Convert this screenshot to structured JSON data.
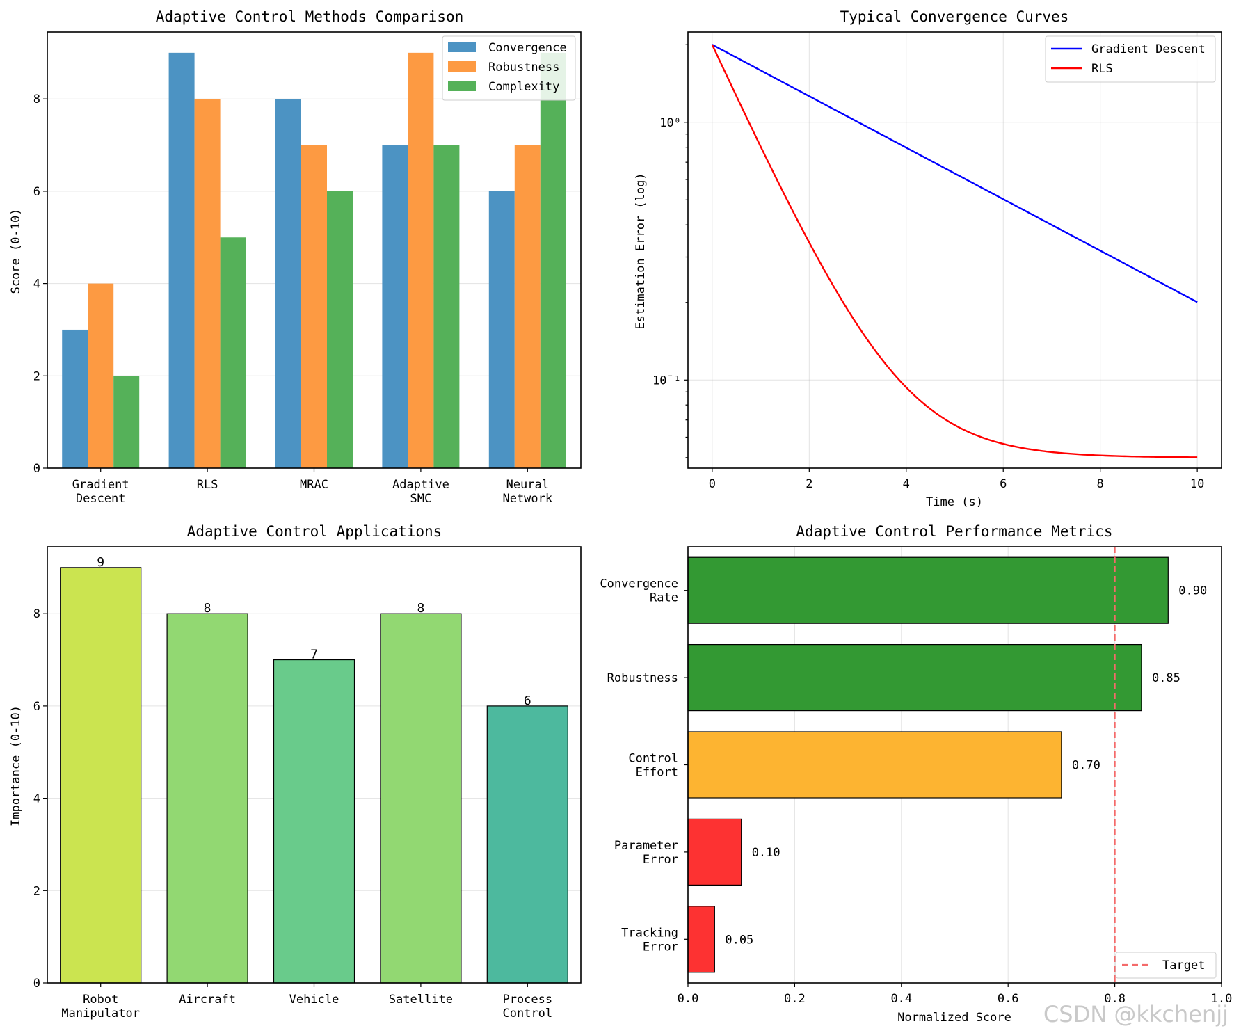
{
  "chart_data": [
    {
      "type": "bar",
      "title": "Adaptive Control Methods Comparison",
      "xlabel": "",
      "ylabel": "Score (0-10)",
      "ylim": [
        0,
        9.45
      ],
      "yticks": [
        0,
        2,
        4,
        6,
        8
      ],
      "categories": [
        "Gradient\nDescent",
        "RLS",
        "MRAC",
        "Adaptive\nSMC",
        "Neural\nNetwork"
      ],
      "series": [
        {
          "name": "Convergence",
          "color": "#4c93c3",
          "values": [
            3,
            9,
            8,
            7,
            6
          ]
        },
        {
          "name": "Robustness",
          "color": "#fd9a42",
          "values": [
            4,
            8,
            7,
            9,
            7
          ]
        },
        {
          "name": "Complexity",
          "color": "#55b159",
          "values": [
            2,
            5,
            6,
            7,
            9
          ]
        }
      ],
      "legend": "top-right",
      "grid": true
    },
    {
      "type": "line",
      "title": "Typical Convergence Curves",
      "xlabel": "Time (s)",
      "ylabel": "Estimation Error (log)",
      "yscale": "log",
      "xlim": [
        -0.5,
        10.5
      ],
      "ylim": [
        0.0455,
        2.24
      ],
      "xticks": [
        0,
        2,
        4,
        6,
        8,
        10
      ],
      "ytick_labels": [
        {
          "value": 1,
          "label": "10⁰"
        },
        {
          "value": 0.1,
          "label": "10¯¹"
        }
      ],
      "series": [
        {
          "name": "Gradient Descent",
          "color": "#0000ff",
          "formula": "2*exp(-0.23*t)",
          "x_range": [
            0,
            10
          ]
        },
        {
          "name": "RLS",
          "color": "#ff0000",
          "formula": "0.05+1.95*exp(-0.95*t)",
          "x_range": [
            0,
            10
          ]
        }
      ],
      "legend": "top-right",
      "grid": true
    },
    {
      "type": "bar",
      "title": "Adaptive Control Applications",
      "xlabel": "",
      "ylabel": "Importance (0-10)",
      "ylim": [
        0,
        9.45
      ],
      "yticks": [
        0,
        2,
        4,
        6,
        8
      ],
      "categories": [
        "Robot\nManipulator",
        "Aircraft",
        "Vehicle",
        "Satellite",
        "Process\nControl"
      ],
      "values": [
        9,
        8,
        7,
        8,
        6
      ],
      "data_labels": [
        "9",
        "8",
        "7",
        "8",
        "6"
      ],
      "colors": [
        "#cbe450",
        "#92d872",
        "#69cb8b",
        "#92d872",
        "#4db99e"
      ],
      "grid": true
    },
    {
      "type": "bar",
      "orientation": "horizontal",
      "title": "Adaptive Control Performance Metrics",
      "xlabel": "Normalized Score",
      "ylabel": "",
      "xlim": [
        0,
        1
      ],
      "xticks": [
        "0.0",
        "0.2",
        "0.4",
        "0.6",
        "0.8",
        "1.0"
      ],
      "categories": [
        "Convergence\nRate",
        "Robustness",
        "Control\nEffort",
        "Parameter\nError",
        "Tracking\nError"
      ],
      "values": [
        0.9,
        0.85,
        0.7,
        0.1,
        0.05
      ],
      "data_labels": [
        "0.90",
        "0.85",
        "0.70",
        "0.10",
        "0.05"
      ],
      "colors": [
        "#339933",
        "#339933",
        "#fdb431",
        "#fd3232",
        "#fd3232"
      ],
      "reference_line": {
        "name": "Target",
        "value": 0.8,
        "color": "#f46a6a",
        "style": "dashed"
      },
      "legend": "bottom-right",
      "grid": true
    }
  ],
  "watermark": "CSDN @kkchenjj"
}
